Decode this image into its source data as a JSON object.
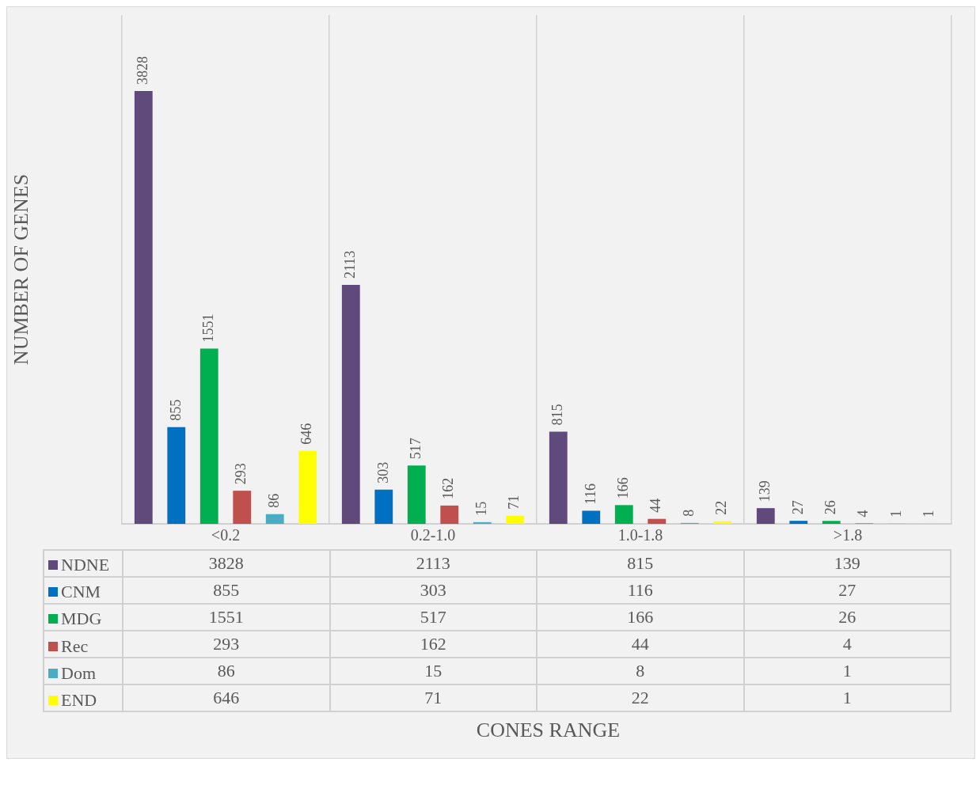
{
  "chart_data": [
    {
      "type": "bar",
      "ylabel": "NUMBER OF GENES",
      "categories": [
        "<0.2",
        "0.2-1.0",
        "1.0-1.8",
        ">1.8"
      ],
      "grid": "x",
      "legend": "bottom",
      "series": [
        {
          "name": "NDNE",
          "color": "#604a7b",
          "values": [
            3828,
            2113,
            815,
            139
          ],
          "value_labels": [
            "3828",
            "2113",
            "815",
            "139"
          ]
        },
        {
          "name": "CNM",
          "color": "#0070c0",
          "values": [
            855,
            303,
            116,
            27
          ],
          "value_labels": [
            "855",
            "303",
            "116",
            "27"
          ]
        },
        {
          "name": "MDG",
          "color": "#00b050",
          "values": [
            1551,
            517,
            166,
            26
          ],
          "value_labels": [
            "1551",
            "517",
            "166",
            "26"
          ]
        },
        {
          "name": "Rec",
          "color": "#c0504d",
          "values": [
            293,
            162,
            44,
            4
          ],
          "value_labels": [
            "293",
            "162",
            "44",
            "4"
          ]
        },
        {
          "name": "Dom",
          "color": "#4bacc6",
          "values": [
            86,
            15,
            8,
            1
          ],
          "value_labels": [
            "86",
            "15",
            "8",
            "1"
          ]
        },
        {
          "name": "END",
          "color": "#ffff00",
          "values": [
            646,
            71,
            22,
            1
          ],
          "value_labels": [
            "646",
            "71",
            "22",
            "1"
          ]
        }
      ]
    },
    {
      "type": "heatmap",
      "categories": [
        null,
        null,
        null,
        null
      ],
      "y_categories": [
        null,
        null,
        null,
        null,
        null,
        null
      ],
      "data_labels": true,
      "annotations": [
        "CONES RANGE"
      ],
      "cells": [
        [
          3828,
          2113,
          815,
          139
        ],
        [
          855,
          303,
          116,
          27
        ],
        [
          1551,
          517,
          166,
          26
        ],
        [
          293,
          162,
          44,
          4
        ],
        [
          86,
          15,
          8,
          1
        ],
        [
          646,
          71,
          22,
          1
        ]
      ]
    }
  ]
}
